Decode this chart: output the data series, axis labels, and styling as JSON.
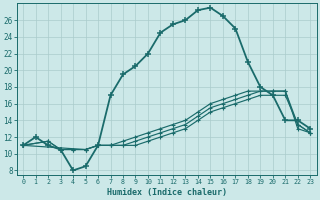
{
  "title": "",
  "xlabel": "Humidex (Indice chaleur)",
  "bg_color": "#cce8e8",
  "grid_color": "#aacccc",
  "line_color": "#1a6b6b",
  "ylim": [
    7.5,
    28
  ],
  "xlim": [
    -0.5,
    23.5
  ],
  "yticks": [
    8,
    10,
    12,
    14,
    16,
    18,
    20,
    22,
    24,
    26
  ],
  "xticks": [
    0,
    1,
    2,
    3,
    4,
    5,
    6,
    7,
    8,
    9,
    10,
    11,
    12,
    13,
    14,
    15,
    16,
    17,
    18,
    19,
    20,
    21,
    22,
    23
  ],
  "line1_x": [
    0,
    1,
    2,
    3,
    4,
    5,
    6,
    7,
    8,
    9,
    10,
    11,
    12,
    13,
    14,
    15,
    16,
    17,
    18,
    19,
    20,
    21,
    22,
    23
  ],
  "line1_y": [
    11.0,
    12.0,
    11.0,
    10.5,
    8.0,
    8.5,
    11.0,
    17.0,
    19.5,
    20.5,
    22.0,
    24.5,
    25.5,
    26.0,
    27.2,
    27.5,
    26.5,
    25.0,
    21.0,
    18.0,
    17.0,
    14.0,
    14.0,
    13.0
  ],
  "line2_x": [
    0,
    2,
    3,
    4,
    5,
    6,
    7,
    8,
    9,
    10,
    11,
    12,
    13,
    14,
    15,
    16,
    17,
    18,
    19,
    20,
    21,
    22,
    23
  ],
  "line2_y": [
    11.0,
    11.5,
    10.5,
    10.5,
    10.5,
    11.0,
    11.0,
    11.0,
    11.0,
    11.5,
    12.0,
    12.5,
    13.0,
    14.0,
    15.0,
    15.5,
    16.0,
    16.5,
    17.0,
    17.0,
    17.0,
    13.5,
    12.5
  ],
  "line3_x": [
    0,
    2,
    3,
    4,
    5,
    6,
    7,
    8,
    9,
    10,
    11,
    12,
    13,
    14,
    15,
    16,
    17,
    18,
    19,
    20,
    21,
    22,
    23
  ],
  "line3_y": [
    11.0,
    11.5,
    10.5,
    10.5,
    10.5,
    11.0,
    11.0,
    11.0,
    11.5,
    12.0,
    12.5,
    13.0,
    13.5,
    14.5,
    15.5,
    16.0,
    16.5,
    17.0,
    17.5,
    17.5,
    17.5,
    13.0,
    12.5
  ],
  "line4_x": [
    0,
    5,
    6,
    7,
    8,
    9,
    10,
    11,
    12,
    13,
    14,
    15,
    16,
    17,
    18,
    19,
    20,
    21,
    22,
    23
  ],
  "line4_y": [
    11.0,
    10.5,
    11.0,
    11.0,
    11.5,
    12.0,
    12.5,
    13.0,
    13.5,
    14.0,
    15.0,
    16.0,
    16.5,
    17.0,
    17.5,
    17.5,
    17.5,
    17.5,
    13.5,
    12.5
  ]
}
